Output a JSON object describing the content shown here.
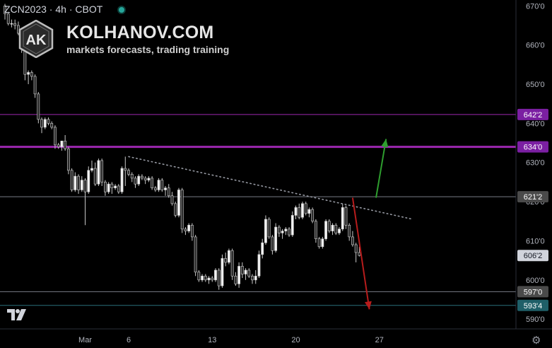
{
  "header": {
    "title": "ZCN2023 · 4h · CBOT"
  },
  "brand": {
    "name": "KOLHANOV.COM",
    "tagline": "markets forecasts, trading training",
    "initials": "AK"
  },
  "icons": {
    "status": "green-dot-icon",
    "tradingview": "tradingview-logo-icon",
    "settings": "gear-icon"
  },
  "settings_glyph": "⚙",
  "chart_data": {
    "type": "candlestick",
    "symbol": "ZCN2023",
    "timeframe": "4h",
    "exchange": "CBOT",
    "y_axis": {
      "range": [
        587.5,
        671.5
      ],
      "ticks": [
        {
          "value": 670,
          "label": "670'0"
        },
        {
          "value": 660,
          "label": "660'0"
        },
        {
          "value": 650,
          "label": "650'0"
        },
        {
          "value": 640,
          "label": "640'0"
        },
        {
          "value": 630,
          "label": "630'0"
        },
        {
          "value": 620,
          "label": "620'0"
        },
        {
          "value": 610,
          "label": "610'0"
        },
        {
          "value": 600,
          "label": "600'0"
        },
        {
          "value": 590,
          "label": "590'0"
        }
      ]
    },
    "x_axis": {
      "ticks": [
        {
          "label": "Mar",
          "bar": 24
        },
        {
          "label": "6",
          "bar": 37
        },
        {
          "label": "13",
          "bar": 62
        },
        {
          "label": "20",
          "bar": 87
        },
        {
          "label": "27",
          "bar": 112
        }
      ]
    },
    "price_levels": [
      {
        "value": 642.25,
        "label": "642'2",
        "color": "#9c27b0",
        "badge": "#7b1fa2",
        "width": 1
      },
      {
        "value": 634.0,
        "label": "634'0",
        "color": "#9c27b0",
        "badge": "#7b1fa2",
        "width": 3
      },
      {
        "value": 621.25,
        "label": "621'2",
        "color": "#787b86",
        "badge": "#4a4a4a",
        "width": 1
      },
      {
        "value": 597.0,
        "label": "597'0",
        "color": "#787b86",
        "badge": "#4a4a4a",
        "width": 1
      },
      {
        "value": 593.5,
        "label": "593'4",
        "color": "#2a6f7a",
        "badge": "#1f5f68",
        "width": 1
      }
    ],
    "last_price": {
      "value": 606.25,
      "label": "606'2"
    },
    "trendline": {
      "start": {
        "bar": 37,
        "value": 631.5
      },
      "end": {
        "bar": 122,
        "value": 615.5
      },
      "style": "dotted"
    },
    "forecast_arrows": [
      {
        "direction": "up",
        "color": "#2e9e2e",
        "start": {
          "bar": 111,
          "value": 621.0
        },
        "end": {
          "bar": 114,
          "value": 636.0
        }
      },
      {
        "direction": "down",
        "color": "#b71c1c",
        "start": {
          "bar": 104,
          "value": 621.0
        },
        "end": {
          "bar": 109,
          "value": 592.5
        }
      }
    ],
    "candles": [
      [
        670.0,
        670.5,
        666.5,
        668.0
      ],
      [
        668.0,
        668.5,
        665.0,
        665.5
      ],
      [
        665.5,
        666.5,
        664.5,
        665.5
      ],
      [
        665.5,
        666.5,
        664.0,
        665.0
      ],
      [
        665.0,
        666.0,
        662.5,
        663.0
      ],
      [
        663.0,
        664.0,
        658.0,
        659.0
      ],
      [
        659.0,
        659.5,
        651.0,
        652.5
      ],
      [
        652.5,
        653.5,
        650.0,
        653.0
      ],
      [
        653.0,
        653.5,
        651.0,
        652.0
      ],
      [
        652.0,
        652.5,
        646.5,
        647.5
      ],
      [
        647.5,
        648.0,
        640.0,
        641.0
      ],
      [
        641.0,
        641.5,
        637.5,
        639.0
      ],
      [
        639.0,
        641.5,
        638.5,
        641.0
      ],
      [
        641.0,
        641.5,
        639.5,
        640.0
      ],
      [
        640.0,
        640.5,
        638.5,
        639.0
      ],
      [
        639.0,
        639.5,
        633.5,
        634.5
      ],
      [
        634.5,
        635.0,
        633.5,
        634.0
      ],
      [
        634.0,
        635.5,
        633.0,
        635.5
      ],
      [
        635.5,
        637.0,
        633.0,
        633.5
      ],
      [
        633.5,
        634.0,
        627.0,
        628.0
      ],
      [
        628.0,
        628.5,
        622.5,
        623.0
      ],
      [
        623.0,
        627.5,
        622.5,
        626.5
      ],
      [
        626.5,
        627.0,
        622.0,
        623.0
      ],
      [
        623.0,
        626.5,
        622.5,
        625.5
      ],
      [
        625.5,
        626.0,
        614.0,
        622.5
      ],
      [
        622.5,
        629.0,
        622.0,
        628.0
      ],
      [
        628.0,
        630.5,
        627.5,
        628.5
      ],
      [
        628.5,
        630.0,
        624.0,
        624.5
      ],
      [
        624.5,
        631.0,
        624.0,
        630.5
      ],
      [
        630.5,
        631.0,
        624.0,
        625.0
      ],
      [
        625.0,
        625.5,
        621.5,
        622.5
      ],
      [
        622.5,
        625.0,
        622.0,
        624.5
      ],
      [
        624.5,
        625.0,
        622.0,
        623.5
      ],
      [
        623.5,
        624.5,
        623.0,
        624.0
      ],
      [
        624.0,
        624.5,
        622.0,
        622.5
      ],
      [
        622.5,
        629.0,
        622.0,
        628.5
      ],
      [
        628.5,
        631.5,
        624.0,
        628.0
      ],
      [
        628.0,
        628.5,
        626.5,
        627.0
      ],
      [
        627.0,
        627.5,
        625.0,
        626.0
      ],
      [
        626.0,
        626.5,
        623.5,
        624.5
      ],
      [
        624.5,
        627.0,
        624.0,
        626.5
      ],
      [
        626.5,
        627.0,
        625.5,
        626.0
      ],
      [
        626.0,
        626.5,
        624.5,
        625.5
      ],
      [
        625.5,
        626.5,
        625.0,
        626.0
      ],
      [
        626.0,
        626.5,
        623.0,
        623.5
      ],
      [
        623.5,
        624.0,
        622.5,
        623.0
      ],
      [
        623.0,
        626.0,
        622.5,
        625.5
      ],
      [
        625.5,
        626.0,
        622.5,
        623.0
      ],
      [
        623.0,
        624.0,
        621.5,
        623.5
      ],
      [
        623.5,
        624.5,
        621.0,
        621.5
      ],
      [
        621.5,
        622.5,
        619.0,
        619.5
      ],
      [
        619.5,
        620.0,
        616.0,
        616.5
      ],
      [
        616.5,
        623.5,
        616.0,
        623.0
      ],
      [
        623.0,
        623.5,
        612.0,
        613.0
      ],
      [
        613.0,
        613.5,
        611.5,
        612.5
      ],
      [
        612.5,
        614.5,
        612.0,
        614.0
      ],
      [
        614.0,
        614.5,
        610.0,
        611.0
      ],
      [
        611.0,
        611.5,
        601.0,
        602.0
      ],
      [
        602.0,
        602.5,
        599.5,
        600.0
      ],
      [
        600.0,
        601.5,
        599.5,
        601.0
      ],
      [
        601.0,
        601.5,
        599.5,
        600.0
      ],
      [
        600.0,
        601.0,
        599.0,
        600.5
      ],
      [
        600.5,
        601.0,
        599.5,
        600.0
      ],
      [
        600.0,
        603.0,
        599.5,
        602.5
      ],
      [
        602.5,
        603.0,
        597.5,
        598.5
      ],
      [
        598.5,
        606.5,
        598.0,
        605.5
      ],
      [
        605.5,
        607.0,
        603.5,
        604.5
      ],
      [
        604.5,
        608.0,
        604.0,
        607.5
      ],
      [
        607.5,
        608.0,
        600.0,
        601.0
      ],
      [
        601.0,
        602.0,
        598.5,
        599.0
      ],
      [
        599.0,
        604.5,
        598.0,
        603.5
      ],
      [
        603.5,
        604.5,
        600.5,
        601.5
      ],
      [
        601.5,
        603.0,
        600.0,
        602.5
      ],
      [
        602.5,
        603.0,
        600.5,
        601.0
      ],
      [
        601.0,
        601.5,
        599.0,
        600.0
      ],
      [
        600.0,
        602.5,
        599.0,
        601.0
      ],
      [
        601.0,
        607.5,
        600.5,
        606.5
      ],
      [
        606.5,
        610.5,
        605.5,
        609.5
      ],
      [
        609.5,
        616.5,
        609.0,
        615.5
      ],
      [
        615.5,
        616.0,
        610.5,
        611.0
      ],
      [
        611.0,
        611.5,
        606.5,
        607.5
      ],
      [
        607.5,
        614.5,
        607.0,
        613.5
      ],
      [
        613.5,
        614.0,
        611.0,
        612.0
      ],
      [
        612.0,
        613.0,
        610.5,
        612.5
      ],
      [
        612.5,
        613.5,
        611.5,
        613.0
      ],
      [
        613.0,
        613.5,
        611.0,
        611.5
      ],
      [
        611.5,
        617.5,
        611.0,
        616.5
      ],
      [
        616.5,
        619.0,
        615.5,
        618.5
      ],
      [
        618.5,
        619.5,
        615.5,
        616.0
      ],
      [
        616.0,
        620.0,
        615.5,
        619.5
      ],
      [
        619.5,
        620.0,
        616.5,
        617.0
      ],
      [
        617.0,
        618.5,
        616.0,
        618.0
      ],
      [
        618.0,
        618.5,
        614.5,
        615.0
      ],
      [
        615.0,
        615.5,
        609.5,
        610.5
      ],
      [
        610.5,
        611.0,
        608.0,
        608.5
      ],
      [
        608.5,
        611.0,
        608.0,
        610.5
      ],
      [
        610.5,
        615.5,
        610.0,
        615.0
      ],
      [
        615.0,
        615.5,
        612.0,
        612.5
      ],
      [
        612.5,
        614.5,
        611.5,
        614.0
      ],
      [
        614.0,
        614.5,
        611.5,
        612.0
      ],
      [
        612.0,
        613.5,
        611.5,
        613.0
      ],
      [
        613.0,
        619.5,
        612.5,
        618.5
      ],
      [
        618.5,
        619.0,
        613.0,
        614.0
      ],
      [
        614.0,
        614.5,
        610.0,
        611.0
      ],
      [
        611.0,
        612.5,
        608.5,
        609.0
      ],
      [
        609.0,
        609.5,
        604.5,
        607.0
      ],
      [
        607.0,
        608.5,
        606.0,
        606.25
      ]
    ]
  }
}
